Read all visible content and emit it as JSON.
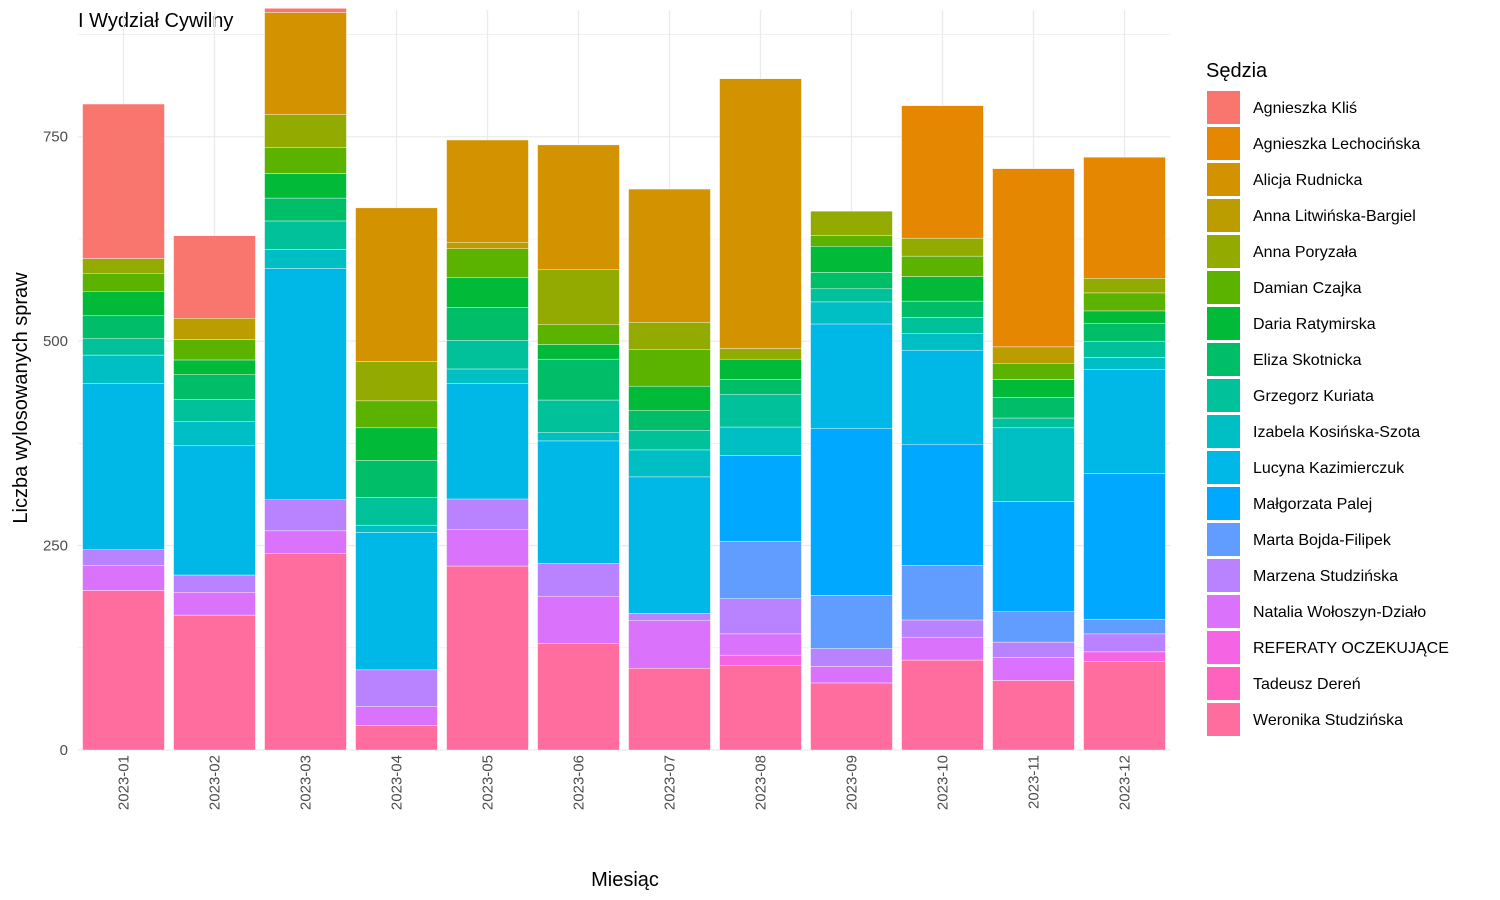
{
  "chart_data": {
    "type": "bar",
    "stacked": true,
    "title": "I Wydział Cywilny",
    "xlabel": "Miesiąc",
    "ylabel": "Liczba wylosowanych spraw",
    "ylim": [
      0,
      905
    ],
    "yticks": [
      0,
      250,
      500,
      750
    ],
    "grid": true,
    "legend": {
      "title": "Sędzia",
      "position": "right"
    },
    "categories": [
      "2023-01",
      "2023-02",
      "2023-03",
      "2023-04",
      "2023-05",
      "2023-06",
      "2023-07",
      "2023-08",
      "2023-09",
      "2023-10",
      "2023-11",
      "2023-12"
    ],
    "series": [
      {
        "name": "Weronika Studzińska",
        "color": "#FF6C9E",
        "values": [
          195,
          165,
          240,
          30,
          225,
          130,
          100,
          103,
          82,
          110,
          85,
          108
        ]
      },
      {
        "name": "Tadeusz Dereń",
        "color": "#FF62BC",
        "values": [
          0,
          0,
          0,
          0,
          0,
          0,
          0,
          0,
          0,
          0,
          0,
          0
        ]
      },
      {
        "name": "REFERATY OCZEKUJĄCE",
        "color": "#F564E3",
        "values": [
          0,
          0,
          0,
          0,
          0,
          0,
          0,
          13,
          0,
          0,
          0,
          12
        ]
      },
      {
        "name": "Natalia Wołoszyn-Działo",
        "color": "#DB72FB",
        "values": [
          31,
          28,
          28,
          23,
          45,
          58,
          58,
          26,
          20,
          28,
          28,
          0
        ]
      },
      {
        "name": "Marzena Studzińska",
        "color": "#B983FF",
        "values": [
          19,
          21,
          38,
          45,
          37,
          40,
          9,
          43,
          22,
          21,
          19,
          22
        ]
      },
      {
        "name": "Marta Bojda-Filipek",
        "color": "#619CFF",
        "values": [
          0,
          0,
          0,
          0,
          0,
          0,
          0,
          70,
          65,
          67,
          37,
          18
        ]
      },
      {
        "name": "Małgorzata Palej",
        "color": "#00A9FF",
        "values": [
          0,
          0,
          0,
          0,
          0,
          0,
          0,
          105,
          204,
          148,
          135,
          178
        ]
      },
      {
        "name": "Lucyna Kazimierczuk",
        "color": "#00B8E7",
        "values": [
          203,
          158,
          283,
          168,
          141,
          150,
          167,
          0,
          128,
          115,
          0,
          127
        ]
      },
      {
        "name": "Izabela Kosińska-Szota",
        "color": "#00BFC4",
        "values": [
          35,
          30,
          23,
          9,
          18,
          10,
          33,
          35,
          27,
          20,
          90,
          15
        ]
      },
      {
        "name": "Grzegorz Kuriata",
        "color": "#00C19A",
        "values": [
          20,
          27,
          35,
          34,
          35,
          40,
          24,
          40,
          16,
          20,
          12,
          20
        ]
      },
      {
        "name": "Eliza Skotnicka",
        "color": "#00BE67",
        "values": [
          28,
          30,
          28,
          45,
          40,
          50,
          24,
          18,
          20,
          20,
          25,
          22
        ]
      },
      {
        "name": "Daria Ratymirska",
        "color": "#00BA38",
        "values": [
          30,
          18,
          30,
          40,
          37,
          18,
          30,
          25,
          32,
          30,
          22,
          15
        ]
      },
      {
        "name": "Damian Czajka",
        "color": "#5BB300",
        "values": [
          22,
          25,
          32,
          33,
          35,
          24,
          45,
          0,
          13,
          25,
          20,
          22
        ]
      },
      {
        "name": "Anna Poryzała",
        "color": "#93AA00",
        "values": [
          18,
          0,
          40,
          48,
          0,
          68,
          33,
          13,
          30,
          22,
          0,
          18
        ]
      },
      {
        "name": "Anna Litwińska-Bargiel",
        "color": "#BB9D00",
        "values": [
          0,
          26,
          0,
          0,
          8,
          0,
          0,
          0,
          0,
          0,
          20,
          0
        ]
      },
      {
        "name": "Alicja Rudnicka",
        "color": "#D39200",
        "values": [
          0,
          0,
          125,
          188,
          125,
          152,
          163,
          330,
          0,
          0,
          0,
          0
        ]
      },
      {
        "name": "Agnieszka Lechocińska",
        "color": "#E58700",
        "values": [
          0,
          0,
          0,
          0,
          0,
          0,
          0,
          0,
          0,
          162,
          218,
          148
        ]
      },
      {
        "name": "Agnieszka Kliś",
        "color": "#F8766D",
        "values": [
          189,
          101,
          5,
          0,
          0,
          0,
          0,
          0,
          0,
          0,
          0,
          0
        ]
      }
    ]
  }
}
